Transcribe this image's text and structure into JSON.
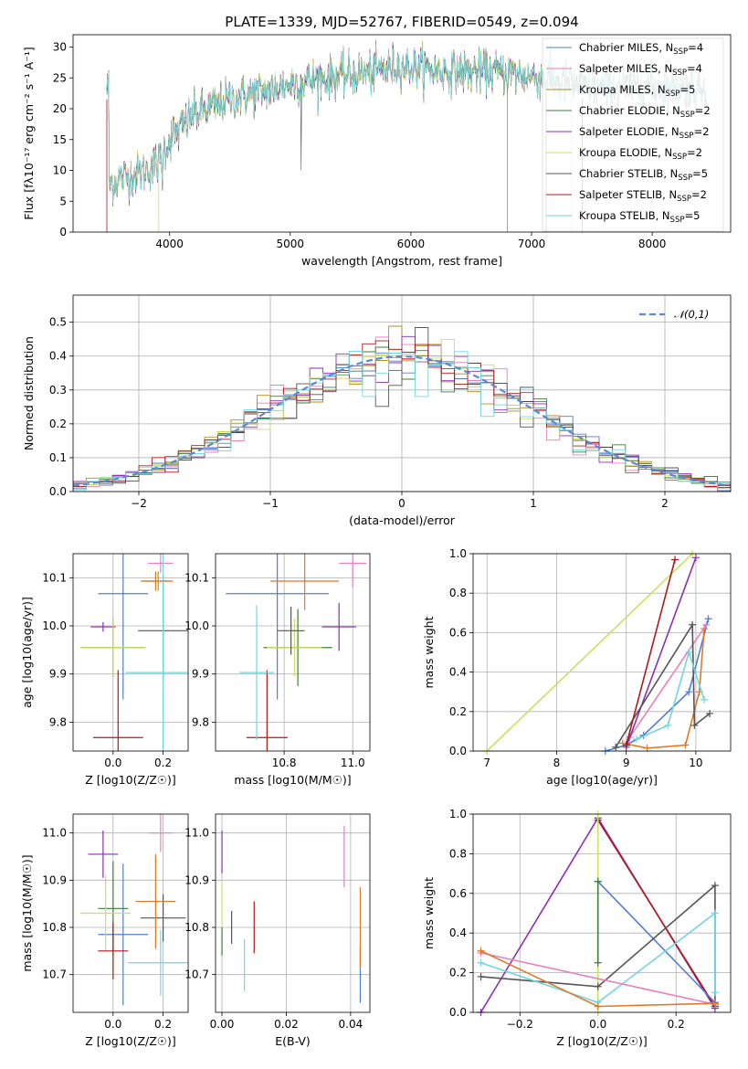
{
  "colors": {
    "Chabrier MILES": "#4f7ed6",
    "Salpeter MILES": "#e77fc1",
    "Kroupa MILES": "#b08c1c",
    "Chabrier ELODIE": "#3d7f3a",
    "Salpeter ELODIE": "#8b2fb3",
    "Kroupa ELODIE": "#c9e060",
    "Chabrier STELIB": "#555555",
    "Salpeter STELIB": "#b01818",
    "Kroupa STELIB": "#6fd6e0",
    "orange": "#e0782a",
    "normal": "#5a8ad6"
  },
  "chart_data": [
    {
      "id": "spectrum",
      "type": "line",
      "title": "PLATE=1339, MJD=52767, FIBERID=0549, z=0.094",
      "xlabel": "wavelength [Angstrom, rest frame]",
      "ylabel": "Flux [fλ10⁻¹⁷ erg cm⁻² s⁻¹ A⁻¹]",
      "xlim": [
        3200,
        8650
      ],
      "ylim": [
        0,
        32
      ],
      "xticks": [
        4000,
        5000,
        6000,
        7000,
        8000
      ],
      "yticks": [
        0,
        5,
        10,
        15,
        20,
        25,
        30
      ],
      "grid": false,
      "legend_position": "right",
      "legend": [
        "Chabrier MILES, N_SSP=4",
        "Salpeter MILES, N_SSP=4",
        "Kroupa MILES, N_SSP=5",
        "Chabrier ELODIE, N_SSP=2",
        "Salpeter ELODIE, N_SSP=2",
        "Kroupa ELODIE, N_SSP=2",
        "Chabrier STELIB, N_SSP=5",
        "Salpeter STELIB, N_SSP=2",
        "Kroupa STELIB, N_SSP=5"
      ],
      "continuum": [
        [
          3500,
          8
        ],
        [
          3650,
          9
        ],
        [
          3800,
          10
        ],
        [
          3900,
          11
        ],
        [
          4000,
          15
        ],
        [
          4100,
          17
        ],
        [
          4200,
          19
        ],
        [
          4300,
          20
        ],
        [
          4400,
          20.5
        ],
        [
          4500,
          21.5
        ],
        [
          4700,
          22.5
        ],
        [
          4900,
          23.5
        ],
        [
          5100,
          24.5
        ],
        [
          5300,
          25
        ],
        [
          5500,
          25.5
        ],
        [
          5700,
          26
        ],
        [
          5900,
          27
        ],
        [
          6100,
          26.5
        ],
        [
          6300,
          26
        ],
        [
          6500,
          26
        ],
        [
          6700,
          26
        ],
        [
          6900,
          25.5
        ],
        [
          7100,
          25
        ],
        [
          7300,
          24
        ],
        [
          7500,
          23.5
        ],
        [
          7700,
          23.5
        ],
        [
          8000,
          23.5
        ],
        [
          8300,
          23.5
        ],
        [
          8450,
          23.5
        ]
      ]
    },
    {
      "id": "residuals",
      "type": "histogram",
      "xlabel": "(data-model)/error",
      "ylabel": "Normed distribution",
      "xlim": [
        -2.5,
        2.5
      ],
      "ylim": [
        0,
        0.58
      ],
      "xticks": [
        -2,
        -1,
        0,
        1,
        2
      ],
      "yticks": [
        0.0,
        0.1,
        0.2,
        0.3,
        0.4,
        0.5
      ],
      "grid": true,
      "legend_position": "top-right",
      "legend": [
        "𝒩(0,1)"
      ],
      "bins": 50
    },
    {
      "id": "age_vs_Z",
      "type": "scatter",
      "xlabel": "Z [log10(Z/Z☉)]",
      "ylabel": "age [log10(age/yr)]",
      "xlim": [
        -0.16,
        0.3
      ],
      "ylim": [
        9.74,
        10.15
      ],
      "xticks": [
        0.0,
        0.2
      ],
      "yticks": [
        9.8,
        9.9,
        10.0,
        10.1
      ],
      "grid": true,
      "points": [
        {
          "model": "Chabrier MILES",
          "x": 0.04,
          "y": 10.067,
          "xerr": 0.1,
          "yerr": 0.22
        },
        {
          "model": "Salpeter MILES",
          "x": 0.19,
          "y": 10.13,
          "xerr": 0.05,
          "yerr": 0.02
        },
        {
          "model": "Kroupa MILES",
          "x": 0.17,
          "y": 10.093,
          "xerr": 0.06,
          "yerr": 0.02
        },
        {
          "model": "Chabrier ELODIE",
          "x": 0.0,
          "y": 9.955,
          "xerr": 0.13,
          "yerr": 0.06
        },
        {
          "model": "Salpeter ELODIE",
          "x": -0.04,
          "y": 9.998,
          "xerr": 0.05,
          "yerr": 0.01
        },
        {
          "model": "Kroupa ELODIE",
          "x": 0.0,
          "y": 9.955,
          "xerr": 0.13,
          "yerr": 0.06
        },
        {
          "model": "Chabrier STELIB",
          "x": 0.2,
          "y": 9.99,
          "xerr": 0.1,
          "yerr": 0.1
        },
        {
          "model": "Salpeter STELIB",
          "x": 0.02,
          "y": 9.768,
          "xerr": 0.1,
          "yerr": 0.14
        },
        {
          "model": "Kroupa STELIB",
          "x": 0.2,
          "y": 9.903,
          "xerr": 0.15,
          "yerr": 0.25
        },
        {
          "model": "orange",
          "x": 0.18,
          "y": 10.093,
          "xerr": 0.06,
          "yerr": 0.02
        }
      ]
    },
    {
      "id": "age_vs_mass",
      "type": "scatter",
      "xlabel": "mass [log10(M/M☉)]",
      "ylabel": "",
      "xlim": [
        10.6,
        11.05
      ],
      "ylim": [
        9.74,
        10.15
      ],
      "xticks": [
        10.8,
        11.0
      ],
      "yticks": [
        9.8,
        9.9,
        10.0,
        10.1
      ],
      "grid": true,
      "points": [
        {
          "model": "Chabrier MILES",
          "x": 10.78,
          "y": 10.067,
          "xerr": 0.15,
          "yerr": 0.22
        },
        {
          "model": "Salpeter MILES",
          "x": 11.0,
          "y": 10.13,
          "xerr": 0.04,
          "yerr": 0.05
        },
        {
          "model": "Chabrier ELODIE",
          "x": 10.84,
          "y": 9.955,
          "xerr": 0.1,
          "yerr": 0.08
        },
        {
          "model": "Salpeter ELODIE",
          "x": 10.96,
          "y": 9.998,
          "xerr": 0.05,
          "yerr": 0.05
        },
        {
          "model": "Kroupa ELODIE",
          "x": 10.83,
          "y": 9.955,
          "xerr": 0.08,
          "yerr": 0.06
        },
        {
          "model": "Chabrier STELIB",
          "x": 10.82,
          "y": 9.99,
          "xerr": 0.04,
          "yerr": 0.05
        },
        {
          "model": "Salpeter STELIB",
          "x": 10.75,
          "y": 9.768,
          "xerr": 0.06,
          "yerr": 0.14
        },
        {
          "model": "Kroupa STELIB",
          "x": 10.72,
          "y": 9.903,
          "xerr": 0.05,
          "yerr": 0.14
        },
        {
          "model": "orange",
          "x": 10.86,
          "y": 10.093,
          "xerr": 0.1,
          "yerr": 0.06
        }
      ]
    },
    {
      "id": "mass_weight_vs_age",
      "type": "line",
      "xlabel": "age [log10(age/yr)]",
      "ylabel": "mass weight",
      "xlim": [
        6.8,
        10.5
      ],
      "ylim": [
        0,
        1
      ],
      "xticks": [
        7,
        8,
        9,
        10
      ],
      "yticks": [
        0.0,
        0.2,
        0.4,
        0.6,
        0.8,
        1.0
      ],
      "grid": true,
      "series": [
        {
          "model": "Chabrier MILES",
          "points": [
            [
              8.7,
              0.0
            ],
            [
              9.0,
              0.03
            ],
            [
              9.25,
              0.08
            ],
            [
              9.9,
              0.3
            ],
            [
              10.18,
              0.67
            ]
          ]
        },
        {
          "model": "orange",
          "points": [
            [
              8.95,
              0.04
            ],
            [
              9.3,
              0.015
            ],
            [
              9.85,
              0.03
            ],
            [
              10.05,
              0.3
            ],
            [
              10.12,
              0.62
            ]
          ]
        },
        {
          "model": "Salpeter MILES",
          "points": [
            [
              9.05,
              0.07
            ],
            [
              10.15,
              0.64
            ]
          ]
        },
        {
          "model": "Salpeter ELODIE",
          "points": [
            [
              9.0,
              0.02
            ],
            [
              10.0,
              0.98
            ]
          ]
        },
        {
          "model": "Kroupa ELODIE",
          "points": [
            [
              7.0,
              0.0
            ],
            [
              9.95,
              1.0
            ]
          ]
        },
        {
          "model": "Chabrier STELIB",
          "points": [
            [
              8.85,
              0.02
            ],
            [
              9.95,
              0.64
            ],
            [
              9.98,
              0.13
            ],
            [
              10.2,
              0.19
            ]
          ]
        },
        {
          "model": "Salpeter STELIB",
          "points": [
            [
              9.0,
              0.03
            ],
            [
              9.7,
              0.97
            ]
          ]
        },
        {
          "model": "Kroupa STELIB",
          "points": [
            [
              9.15,
              0.06
            ],
            [
              9.6,
              0.13
            ],
            [
              9.9,
              0.5
            ],
            [
              10.12,
              0.26
            ]
          ]
        }
      ]
    },
    {
      "id": "mass_vs_Z",
      "type": "scatter",
      "xlabel": "Z [log10(Z/Z☉)]",
      "ylabel": "mass [log10(M/M☉)]",
      "xlim": [
        -0.16,
        0.3
      ],
      "ylim": [
        10.62,
        11.04
      ],
      "xticks": [
        0.0,
        0.2
      ],
      "yticks": [
        10.7,
        10.8,
        10.9,
        11.0
      ],
      "grid": true,
      "points": [
        {
          "model": "Chabrier MILES",
          "x": 0.04,
          "y": 10.785,
          "xerr": 0.1,
          "yerr": 0.15
        },
        {
          "model": "Salpeter MILES",
          "x": 0.19,
          "y": 11.0,
          "xerr": 0.05,
          "yerr": 0.04
        },
        {
          "model": "Chabrier ELODIE",
          "x": 0.0,
          "y": 10.84,
          "xerr": 0.06,
          "yerr": 0.1
        },
        {
          "model": "Salpeter ELODIE",
          "x": -0.04,
          "y": 10.955,
          "xerr": 0.06,
          "yerr": 0.05
        },
        {
          "model": "Kroupa ELODIE",
          "x": -0.03,
          "y": 10.83,
          "xerr": 0.1,
          "yerr": 0.08
        },
        {
          "model": "Chabrier STELIB",
          "x": 0.2,
          "y": 10.82,
          "xerr": 0.09,
          "yerr": 0.05
        },
        {
          "model": "Salpeter STELIB",
          "x": 0.0,
          "y": 10.75,
          "xerr": 0.06,
          "yerr": 0.06
        },
        {
          "model": "Kroupa STELIB",
          "x": 0.19,
          "y": 10.725,
          "xerr": 0.13,
          "yerr": 0.07
        },
        {
          "model": "orange",
          "x": 0.17,
          "y": 10.855,
          "xerr": 0.08,
          "yerr": 0.1
        }
      ]
    },
    {
      "id": "mass_vs_ebv",
      "type": "scatter",
      "xlabel": "E(B-V)",
      "ylabel": "",
      "xlim": [
        -0.002,
        0.046
      ],
      "ylim": [
        10.62,
        11.04
      ],
      "xticks": [
        0.0,
        0.02,
        0.04
      ],
      "yticks": [
        10.7,
        10.8,
        10.9,
        11.0
      ],
      "grid": true,
      "points": [
        {
          "model": "Chabrier MILES",
          "x": 0.043,
          "y": 10.7,
          "xerr": 0,
          "yerr": 0.06
        },
        {
          "model": "Salpeter MILES",
          "x": 0.038,
          "y": 10.95,
          "xerr": 0,
          "yerr": 0.065
        },
        {
          "model": "Salpeter ELODIE",
          "x": 0.0,
          "y": 10.96,
          "xerr": 0,
          "yerr": 0.045
        },
        {
          "model": "Kroupa ELODIE",
          "x": 0.0,
          "y": 10.85,
          "xerr": 0,
          "yerr": 0.05
        },
        {
          "model": "Chabrier ELODIE",
          "x": 0.0,
          "y": 10.77,
          "xerr": 0,
          "yerr": 0.03
        },
        {
          "model": "Chabrier STELIB",
          "x": 0.003,
          "y": 10.8,
          "xerr": 0,
          "yerr": 0.035
        },
        {
          "model": "Kroupa STELIB",
          "x": 0.007,
          "y": 10.72,
          "xerr": 0,
          "yerr": 0.055
        },
        {
          "model": "Salpeter STELIB",
          "x": 0.01,
          "y": 10.8,
          "xerr": 0,
          "yerr": 0.055
        },
        {
          "model": "orange",
          "x": 0.043,
          "y": 10.8,
          "xerr": 0,
          "yerr": 0.085
        }
      ]
    },
    {
      "id": "mass_weight_vs_Z",
      "type": "line",
      "xlabel": "Z [log10(Z/Z☉)]",
      "ylabel": "mass weight",
      "xlim": [
        -0.32,
        0.34
      ],
      "ylim": [
        0,
        1
      ],
      "xticks": [
        -0.2,
        0.0,
        0.2
      ],
      "yticks": [
        0.0,
        0.2,
        0.4,
        0.6,
        0.8,
        1.0
      ],
      "grid": true,
      "series": [
        {
          "model": "Salpeter ELODIE",
          "points": [
            [
              -0.3,
              0.0
            ],
            [
              0.0,
              0.98
            ],
            [
              0.3,
              0.02
            ]
          ]
        },
        {
          "model": "Salpeter STELIB",
          "points": [
            [
              0.0,
              0.97
            ],
            [
              0.3,
              0.03
            ]
          ]
        },
        {
          "model": "Kroupa ELODIE",
          "points": [
            [
              0.0,
              0.0
            ],
            [
              0.0,
              1.0
            ]
          ]
        },
        {
          "model": "Chabrier MILES",
          "points": [
            [
              0.0,
              0.66
            ],
            [
              0.3,
              0.05
            ]
          ]
        },
        {
          "model": "Chabrier ELODIE",
          "points": [
            [
              0.0,
              0.66
            ],
            [
              0.0,
              0.25
            ]
          ]
        },
        {
          "model": "Chabrier STELIB",
          "points": [
            [
              -0.3,
              0.18
            ],
            [
              0.0,
              0.13
            ],
            [
              0.3,
              0.64
            ],
            [
              0.3,
              0.03
            ]
          ]
        },
        {
          "model": "Kroupa STELIB",
          "points": [
            [
              -0.3,
              0.25
            ],
            [
              0.0,
              0.05
            ],
            [
              0.3,
              0.5
            ],
            [
              0.3,
              0.1
            ]
          ]
        },
        {
          "model": "Salpeter MILES",
          "points": [
            [
              -0.3,
              0.3
            ],
            [
              0.3,
              0.04
            ]
          ]
        },
        {
          "model": "orange",
          "points": [
            [
              -0.3,
              0.31
            ],
            [
              0.0,
              0.03
            ],
            [
              0.3,
              0.045
            ]
          ]
        }
      ]
    }
  ]
}
